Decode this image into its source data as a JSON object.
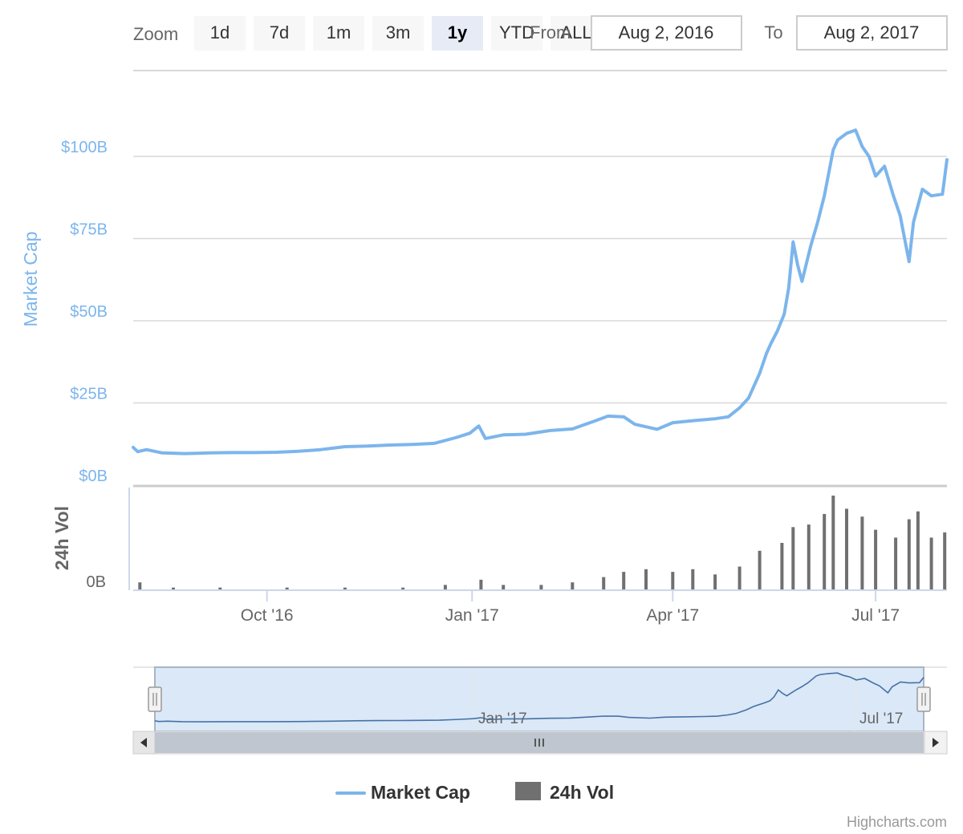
{
  "colors": {
    "market_cap": "#7cb5ec",
    "volume": "#707070",
    "navigator_fill": "#dbe8f7",
    "navigator_border": "#a7b5c4",
    "button_bg": "#f7f7f7",
    "button_active_bg": "#e6ebf5",
    "gridline": "#d8d8d8",
    "text_dark": "#333333",
    "text_muted": "#666666",
    "scrollbar": "#bfc6cf"
  },
  "range_selector": {
    "zoom_label": "Zoom",
    "buttons": [
      {
        "label": "1d",
        "active": false
      },
      {
        "label": "7d",
        "active": false
      },
      {
        "label": "1m",
        "active": false
      },
      {
        "label": "3m",
        "active": false
      },
      {
        "label": "1y",
        "active": true
      },
      {
        "label": "YTD",
        "active": false
      },
      {
        "label": "ALL",
        "active": false
      }
    ],
    "from_label": "From",
    "from_value": "Aug 2, 2016",
    "to_label": "To",
    "to_value": "Aug 2, 2017"
  },
  "chart_data": {
    "type": "line",
    "title": "",
    "x_axis": {
      "type": "datetime",
      "range": [
        "2016-08-02",
        "2017-08-02"
      ],
      "tick_labels": [
        {
          "date": "2016-10-01",
          "label": "Oct '16"
        },
        {
          "date": "2017-01-01",
          "label": "Jan '17"
        },
        {
          "date": "2017-04-01",
          "label": "Apr '17"
        },
        {
          "date": "2017-07-01",
          "label": "Jul '17"
        }
      ]
    },
    "y_axis_top": {
      "title": "Market Cap",
      "range": [
        0,
        120
      ],
      "unit": "billion USD",
      "tick_values": [
        0,
        25,
        50,
        75,
        100
      ],
      "tick_labels": [
        "$0B",
        "$25B",
        "$50B",
        "$75B",
        "$100B"
      ]
    },
    "y_axis_bottom": {
      "title": "24h Vol",
      "tick_labels": [
        "0B"
      ]
    },
    "grid": true,
    "legend_position": "bottom-center",
    "series": [
      {
        "name": "Market Cap",
        "type": "line",
        "unit": "billion USD",
        "points": [
          [
            "2016-08-02",
            11.5
          ],
          [
            "2016-08-04",
            10.2
          ],
          [
            "2016-08-08",
            10.8
          ],
          [
            "2016-08-15",
            9.8
          ],
          [
            "2016-08-25",
            9.6
          ],
          [
            "2016-09-05",
            9.8
          ],
          [
            "2016-09-15",
            9.9
          ],
          [
            "2016-09-25",
            9.9
          ],
          [
            "2016-10-05",
            10.0
          ],
          [
            "2016-10-15",
            10.3
          ],
          [
            "2016-10-25",
            10.8
          ],
          [
            "2016-11-05",
            11.7
          ],
          [
            "2016-11-15",
            11.9
          ],
          [
            "2016-11-25",
            12.2
          ],
          [
            "2016-12-05",
            12.4
          ],
          [
            "2016-12-15",
            12.7
          ],
          [
            "2016-12-25",
            14.5
          ],
          [
            "2016-12-31",
            15.8
          ],
          [
            "2017-01-04",
            18.0
          ],
          [
            "2017-01-07",
            14.2
          ],
          [
            "2017-01-15",
            15.3
          ],
          [
            "2017-01-25",
            15.5
          ],
          [
            "2017-02-05",
            16.6
          ],
          [
            "2017-02-15",
            17.1
          ],
          [
            "2017-02-25",
            19.5
          ],
          [
            "2017-03-03",
            21.0
          ],
          [
            "2017-03-10",
            20.8
          ],
          [
            "2017-03-15",
            18.5
          ],
          [
            "2017-03-25",
            17.0
          ],
          [
            "2017-04-01",
            19.0
          ],
          [
            "2017-04-10",
            19.6
          ],
          [
            "2017-04-20",
            20.2
          ],
          [
            "2017-04-26",
            20.8
          ],
          [
            "2017-05-01",
            23.5
          ],
          [
            "2017-05-05",
            26.5
          ],
          [
            "2017-05-10",
            34.0
          ],
          [
            "2017-05-13",
            40.0
          ],
          [
            "2017-05-15",
            43.0
          ],
          [
            "2017-05-18",
            47.0
          ],
          [
            "2017-05-21",
            52.0
          ],
          [
            "2017-05-23",
            60.0
          ],
          [
            "2017-05-25",
            74.0
          ],
          [
            "2017-05-27",
            67.0
          ],
          [
            "2017-05-29",
            62.0
          ],
          [
            "2017-06-02",
            73.0
          ],
          [
            "2017-06-05",
            80.0
          ],
          [
            "2017-06-08",
            88.0
          ],
          [
            "2017-06-12",
            102.0
          ],
          [
            "2017-06-14",
            105.0
          ],
          [
            "2017-06-18",
            107.0
          ],
          [
            "2017-06-22",
            108.0
          ],
          [
            "2017-06-25",
            103.0
          ],
          [
            "2017-06-28",
            100.0
          ],
          [
            "2017-07-01",
            94.0
          ],
          [
            "2017-07-05",
            97.0
          ],
          [
            "2017-07-09",
            88.0
          ],
          [
            "2017-07-12",
            82.0
          ],
          [
            "2017-07-14",
            75.0
          ],
          [
            "2017-07-16",
            68.0
          ],
          [
            "2017-07-18",
            80.0
          ],
          [
            "2017-07-22",
            90.0
          ],
          [
            "2017-07-26",
            88.0
          ],
          [
            "2017-07-31",
            88.5
          ],
          [
            "2017-08-02",
            99.0
          ]
        ]
      },
      {
        "name": "24h Vol",
        "type": "column",
        "unit": "billion USD",
        "points": [
          [
            "2016-08-05",
            0.3
          ],
          [
            "2016-08-20",
            0.1
          ],
          [
            "2016-09-10",
            0.1
          ],
          [
            "2016-10-10",
            0.1
          ],
          [
            "2016-11-05",
            0.1
          ],
          [
            "2016-12-01",
            0.1
          ],
          [
            "2016-12-20",
            0.2
          ],
          [
            "2017-01-05",
            0.4
          ],
          [
            "2017-01-15",
            0.2
          ],
          [
            "2017-02-01",
            0.2
          ],
          [
            "2017-02-15",
            0.3
          ],
          [
            "2017-03-01",
            0.5
          ],
          [
            "2017-03-10",
            0.7
          ],
          [
            "2017-03-20",
            0.8
          ],
          [
            "2017-04-01",
            0.7
          ],
          [
            "2017-04-10",
            0.8
          ],
          [
            "2017-04-20",
            0.6
          ],
          [
            "2017-05-01",
            0.9
          ],
          [
            "2017-05-10",
            1.5
          ],
          [
            "2017-05-20",
            1.8
          ],
          [
            "2017-05-25",
            2.4
          ],
          [
            "2017-06-01",
            2.5
          ],
          [
            "2017-06-08",
            2.9
          ],
          [
            "2017-06-12",
            3.6
          ],
          [
            "2017-06-18",
            3.1
          ],
          [
            "2017-06-25",
            2.8
          ],
          [
            "2017-07-01",
            2.3
          ],
          [
            "2017-07-10",
            2.0
          ],
          [
            "2017-07-16",
            2.7
          ],
          [
            "2017-07-20",
            3.0
          ],
          [
            "2017-07-26",
            2.0
          ],
          [
            "2017-08-01",
            2.2
          ]
        ]
      }
    ],
    "navigator": {
      "tick_labels": [
        "Jan '17",
        "Jul '17"
      ]
    }
  },
  "legend": {
    "items": [
      {
        "label": "Market Cap",
        "symbol": "line"
      },
      {
        "label": "24h Vol",
        "symbol": "square"
      }
    ]
  },
  "credits": "Highcharts.com"
}
